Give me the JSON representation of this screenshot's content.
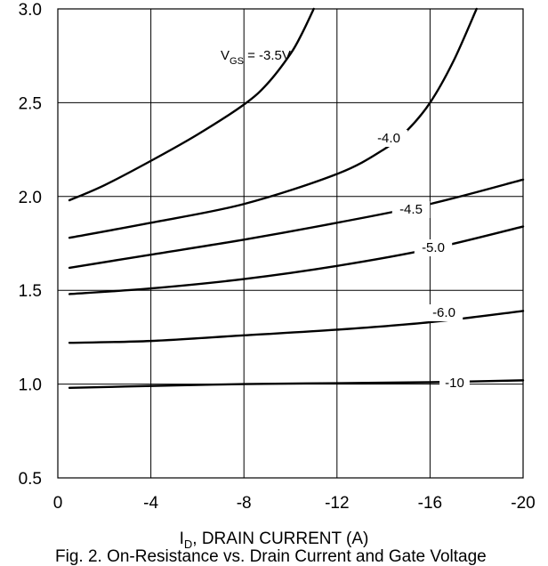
{
  "chart_data": {
    "type": "line",
    "xlabel_main": "I",
    "xlabel_sub": "D",
    "xlabel_rest": ", DRAIN CURRENT (A)",
    "caption": "Fig. 2.  On-Resistance vs. Drain Current and Gate Voltage",
    "xlim": [
      0,
      -20
    ],
    "ylim": [
      0.5,
      3.0
    ],
    "x_ticks": [
      "0",
      "-4",
      "-8",
      "-12",
      "-16",
      "-20"
    ],
    "y_ticks": [
      "0.5",
      "1.0",
      "1.5",
      "2.0",
      "2.5",
      "3.0"
    ],
    "grid": true,
    "series": [
      {
        "name": "V_GS = -3.5V",
        "label_main": "V",
        "label_sub": "GS",
        "label_rest": " = -3.5V",
        "x": [
          -0.5,
          -2,
          -4,
          -6,
          -8,
          -9,
          -10,
          -10.5,
          -11
        ],
        "y": [
          1.98,
          2.06,
          2.19,
          2.33,
          2.49,
          2.6,
          2.76,
          2.87,
          3.0
        ]
      },
      {
        "name": "-4.0",
        "label": "-4.0",
        "x": [
          -0.5,
          -4,
          -8,
          -12,
          -14,
          -15,
          -16,
          -17,
          -18
        ],
        "y": [
          1.78,
          1.86,
          1.96,
          2.12,
          2.25,
          2.35,
          2.5,
          2.72,
          3.0
        ]
      },
      {
        "name": "-4.5",
        "label": "-4.5",
        "x": [
          -0.5,
          -4,
          -8,
          -12,
          -16,
          -20
        ],
        "y": [
          1.62,
          1.69,
          1.77,
          1.86,
          1.96,
          2.09
        ]
      },
      {
        "name": "-5.0",
        "label": "-5.0",
        "x": [
          -0.5,
          -4,
          -8,
          -12,
          -16,
          -20
        ],
        "y": [
          1.48,
          1.51,
          1.56,
          1.63,
          1.72,
          1.84
        ]
      },
      {
        "name": "-6.0",
        "label": "-6.0",
        "x": [
          -0.5,
          -4,
          -8,
          -12,
          -16,
          -20
        ],
        "y": [
          1.22,
          1.23,
          1.26,
          1.29,
          1.33,
          1.39
        ]
      },
      {
        "name": "-10",
        "label": "-10",
        "x": [
          -0.5,
          -4,
          -8,
          -12,
          -16,
          -20
        ],
        "y": [
          0.98,
          0.99,
          1.0,
          1.005,
          1.01,
          1.02
        ]
      }
    ]
  }
}
